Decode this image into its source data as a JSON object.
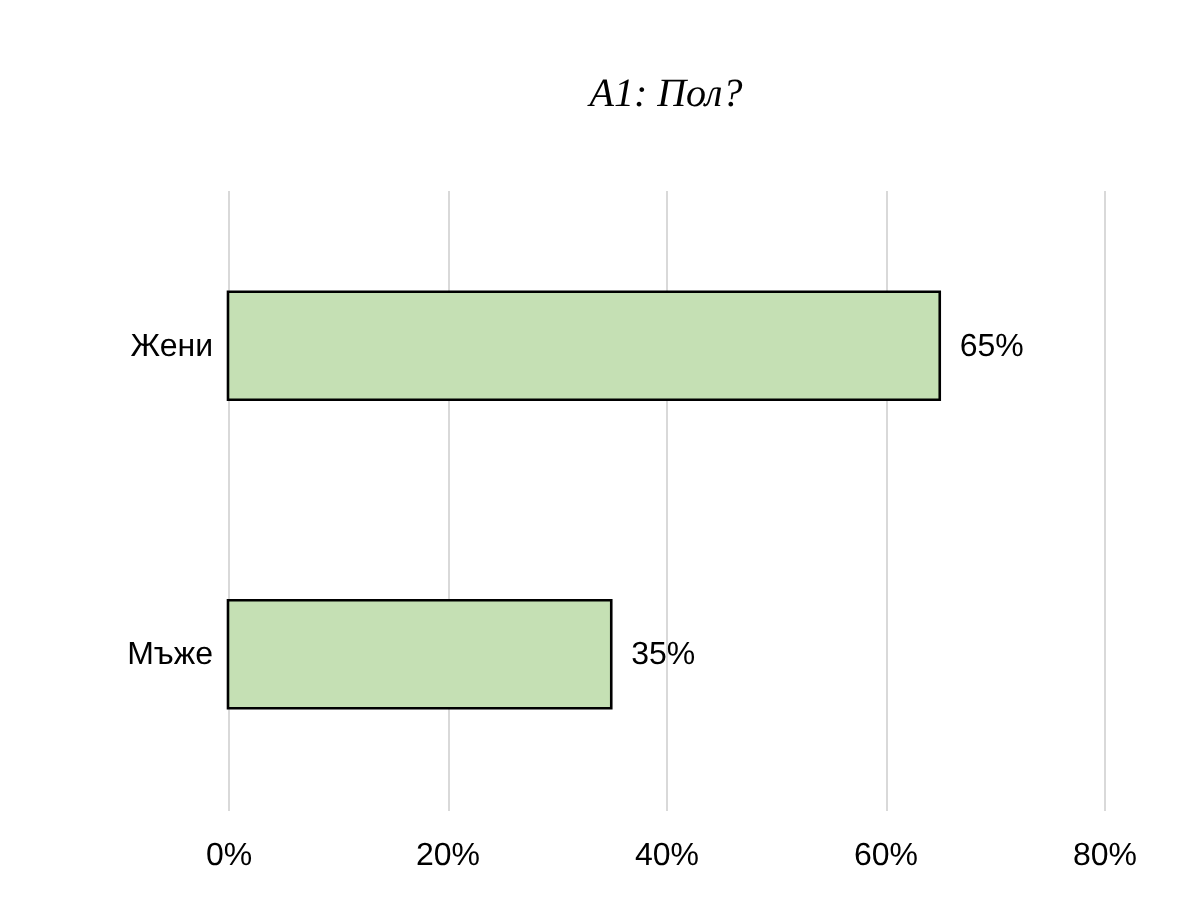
{
  "chart_data": {
    "type": "bar",
    "orientation": "horizontal",
    "title": "A1: Пол?",
    "categories": [
      "Жени",
      "Мъже"
    ],
    "values": [
      65,
      35
    ],
    "value_labels": [
      "65%",
      "35%"
    ],
    "color": "#c5e0b4",
    "xlim": [
      0,
      80
    ],
    "xticks": [
      {
        "value": 0,
        "label": "0%"
      },
      {
        "value": 20,
        "label": "20%"
      },
      {
        "value": 40,
        "label": "40%"
      },
      {
        "value": 60,
        "label": "60%"
      },
      {
        "value": 80,
        "label": "80%"
      }
    ],
    "grid": "x"
  }
}
